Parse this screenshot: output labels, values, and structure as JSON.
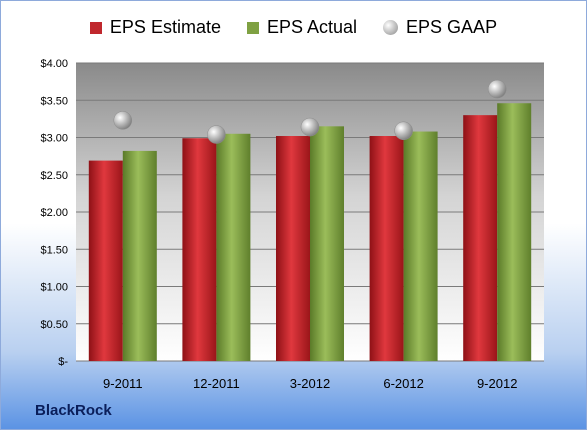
{
  "brand": "BlackRock",
  "colors": {
    "estimate": "#c0272d",
    "actual": "#7fa142",
    "gaap": "#a8a8a8"
  },
  "chart_data": {
    "type": "bar",
    "categories": [
      "9-2011",
      "12-2011",
      "3-2012",
      "6-2012",
      "9-2012"
    ],
    "series": [
      {
        "name": "EPS Estimate",
        "values": [
          2.69,
          2.99,
          3.02,
          3.02,
          3.3
        ]
      },
      {
        "name": "EPS Actual",
        "values": [
          2.82,
          3.05,
          3.15,
          3.08,
          3.46
        ]
      },
      {
        "name": "EPS GAAP",
        "kind": "marker",
        "values": [
          3.23,
          3.04,
          3.14,
          3.09,
          3.65
        ]
      }
    ],
    "ylim": [
      0,
      4
    ],
    "yticks": [
      0,
      0.5,
      1.0,
      1.5,
      2.0,
      2.5,
      3.0,
      3.5,
      4.0
    ],
    "ytick_labels": [
      "$-",
      "$0.50",
      "$1.00",
      "$1.50",
      "$2.00",
      "$2.50",
      "$3.00",
      "$3.50",
      "$4.00"
    ],
    "legend": "top",
    "grid": true
  }
}
